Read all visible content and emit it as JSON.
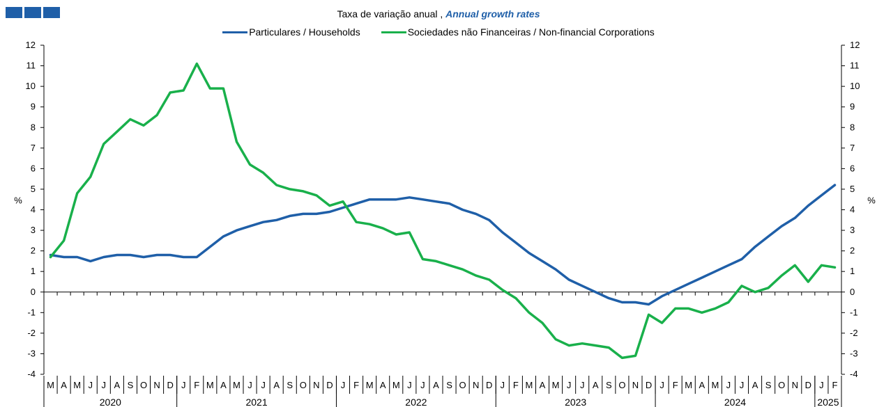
{
  "header": {
    "title_pt": "Taxa de variação anual ,",
    "title_en": "Annual growth rates",
    "logo_color": "#1f5fa8"
  },
  "chart_data": {
    "type": "line",
    "title": "Taxa de variação anual , Annual growth rates",
    "ylabel_left": "%",
    "ylabel_right": "%",
    "ylim": [
      -4,
      12
    ],
    "yticks": [
      -4,
      -3,
      -2,
      -1,
      0,
      1,
      2,
      3,
      4,
      5,
      6,
      7,
      8,
      9,
      10,
      11,
      12
    ],
    "grid": false,
    "legend_position": "top-center",
    "months": [
      "M",
      "A",
      "M",
      "J",
      "J",
      "A",
      "S",
      "O",
      "N",
      "D",
      "J",
      "F",
      "M",
      "A",
      "M",
      "J",
      "J",
      "A",
      "S",
      "O",
      "N",
      "D",
      "J",
      "F",
      "M",
      "A",
      "M",
      "J",
      "J",
      "A",
      "S",
      "O",
      "N",
      "D",
      "J",
      "F",
      "M",
      "A",
      "M",
      "J",
      "J",
      "A",
      "S",
      "O",
      "N",
      "D",
      "J",
      "F",
      "M",
      "A",
      "M",
      "J",
      "J",
      "A",
      "S",
      "O",
      "N",
      "D",
      "J",
      "F"
    ],
    "years": [
      {
        "label": "2020",
        "start": 0,
        "count": 10
      },
      {
        "label": "2021",
        "start": 10,
        "count": 12
      },
      {
        "label": "2022",
        "start": 22,
        "count": 12
      },
      {
        "label": "2023",
        "start": 34,
        "count": 12
      },
      {
        "label": "2024",
        "start": 46,
        "count": 12
      },
      {
        "label": "2025",
        "start": 58,
        "count": 2
      }
    ],
    "series": [
      {
        "name": "Particulares / Households",
        "color": "#1f5fa8",
        "values": [
          1.8,
          1.7,
          1.7,
          1.5,
          1.7,
          1.8,
          1.8,
          1.7,
          1.8,
          1.8,
          1.7,
          1.7,
          2.2,
          2.7,
          3.0,
          3.2,
          3.4,
          3.5,
          3.7,
          3.8,
          3.8,
          3.9,
          4.1,
          4.3,
          4.5,
          4.5,
          4.5,
          4.6,
          4.5,
          4.4,
          4.3,
          4.0,
          3.8,
          3.5,
          2.9,
          2.4,
          1.9,
          1.5,
          1.1,
          0.6,
          0.3,
          0.0,
          -0.3,
          -0.5,
          -0.5,
          -0.6,
          -0.2,
          0.1,
          0.4,
          0.7,
          1.0,
          1.3,
          1.6,
          2.2,
          2.7,
          3.2,
          3.6,
          4.2,
          4.7,
          5.2
        ]
      },
      {
        "name": "Sociedades não Financeiras / Non-financial Corporations",
        "color": "#19b04b",
        "values": [
          1.7,
          2.5,
          4.8,
          5.6,
          7.2,
          7.8,
          8.4,
          8.1,
          8.6,
          9.7,
          9.8,
          11.1,
          9.9,
          9.9,
          7.3,
          6.2,
          5.8,
          5.2,
          5.0,
          4.9,
          4.7,
          4.2,
          4.4,
          3.4,
          3.3,
          3.1,
          2.8,
          2.9,
          1.6,
          1.5,
          1.3,
          1.1,
          0.8,
          0.6,
          0.1,
          -0.3,
          -1.0,
          -1.5,
          -2.3,
          -2.6,
          -2.5,
          -2.6,
          -2.7,
          -3.2,
          -3.1,
          -1.1,
          -1.5,
          -0.8,
          -0.8,
          -1.0,
          -0.8,
          -0.5,
          0.3,
          0.0,
          0.2,
          0.8,
          1.3,
          0.5,
          1.3,
          1.2
        ]
      }
    ]
  }
}
